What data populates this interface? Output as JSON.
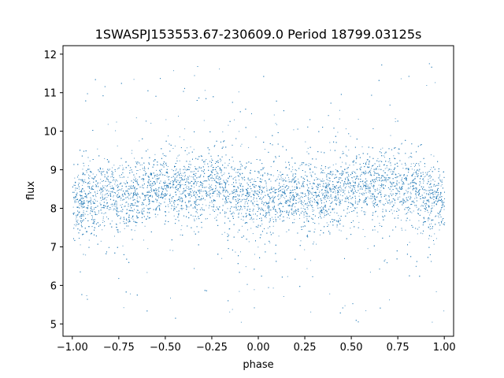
{
  "chart_data": {
    "type": "scatter",
    "title": "1SWASPJ153553.67-230609.0 Period 18799.03125s",
    "xlabel": "phase",
    "ylabel": "flux",
    "xlim": [
      -1.05,
      1.05
    ],
    "ylim": [
      4.68,
      12.22
    ],
    "x_ticks": [
      -1.0,
      -0.75,
      -0.5,
      -0.25,
      0.0,
      0.25,
      0.5,
      0.75,
      1.0
    ],
    "x_tick_labels": [
      "−1.00",
      "−0.75",
      "−0.50",
      "−0.25",
      "0.00",
      "0.25",
      "0.50",
      "0.75",
      "1.00"
    ],
    "y_ticks": [
      5,
      6,
      7,
      8,
      9,
      10,
      11,
      12
    ],
    "y_tick_labels": [
      "5",
      "6",
      "7",
      "8",
      "9",
      "10",
      "11",
      "12"
    ],
    "grid": false,
    "legend": "none",
    "marker_color": "#1f77b4",
    "series": [
      {
        "x_range": [
          -1.0,
          1.0
        ],
        "flux_profile": {
          "phase": [
            -1.0,
            -0.75,
            -0.5,
            -0.25,
            0.0,
            0.25,
            0.5,
            0.75,
            1.0
          ],
          "median_flux": [
            8.2,
            8.35,
            8.55,
            8.6,
            8.2,
            8.35,
            8.55,
            8.6,
            8.2
          ]
        },
        "core_spread": 0.45,
        "outlier_range": [
          5.0,
          11.8
        ]
      }
    ]
  }
}
